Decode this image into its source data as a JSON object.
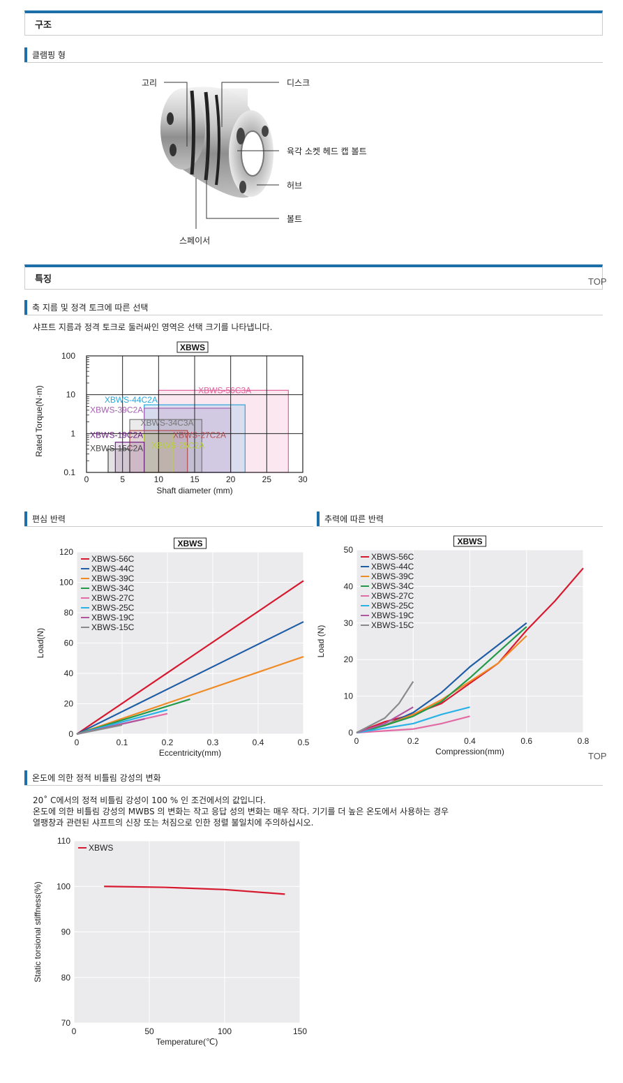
{
  "sections": {
    "structure": "구조",
    "features": "특징"
  },
  "subs": {
    "clamping": "클램핑 형",
    "selection": "축 지름 및 정격 토크에 따른 선택",
    "eccentric": "편심 반력",
    "compress": "추력에 따른 반력",
    "temperature": "온도에 의한 정적 비틀림 강성의 변화"
  },
  "top_link": "TOP",
  "diagram_labels": {
    "ring": "고리",
    "disc": "디스크",
    "hex_bolt": "육각 소켓 헤드 캡 볼트",
    "hub": "허브",
    "bolt": "볼트",
    "spacer": "스페이서"
  },
  "selection_text": "샤프트 지름과 정격 토크로 둘러싸인 영역은 선택 크기를 나타냅니다.",
  "temperature_text": [
    "20˚ C에서의 정적 비틀림 강성이 100 % 인 조건에서의 값입니다.",
    "온도에 의한 비틀림 강성의 MWBS 의 변화는 작고 응답 성의 변화는 매우 작다. 기기를 더 높은 온도에서 사용하는 경우",
    "열팽창과 관련된 샤프트의 신장 또는 처짐으로 인한 정렬 불일치에 주의하십시오."
  ],
  "chart_data": [
    {
      "type": "area",
      "title": "XBWS",
      "xlabel": "Shaft diameter (mm)",
      "ylabel": "Rated Torque(N·m)",
      "xlim": [
        0,
        30
      ],
      "ylim": [
        0.1,
        100
      ],
      "yscale": "log",
      "x_ticks": [
        "0",
        "5",
        "10",
        "15",
        "20",
        "25",
        "30"
      ],
      "y_ticks": [
        "0.1",
        "1",
        "10",
        "100"
      ],
      "regions": [
        {
          "name": "XBWS-56C3A",
          "d_min": 10,
          "d_max": 28,
          "torque": 13,
          "color": "#e0609a"
        },
        {
          "name": "XBWS-44C2A",
          "d_min": 8,
          "d_max": 22,
          "torque": 5.5,
          "color": "#2aa6dc"
        },
        {
          "name": "XBWS-39C2A",
          "d_min": 8,
          "d_max": 20,
          "torque": 4.5,
          "color": "#a560b0"
        },
        {
          "name": "XBWS-34C3A",
          "d_min": 6,
          "d_max": 16,
          "torque": 2.3,
          "color": "#777777"
        },
        {
          "name": "XBWS-27C2A",
          "d_min": 6,
          "d_max": 14,
          "torque": 1.2,
          "color": "#b05050"
        },
        {
          "name": "XBWS-25C2A",
          "d_min": 8,
          "d_max": 12,
          "torque": 1.0,
          "color": "#b8d040"
        },
        {
          "name": "XBWS-19C2A",
          "d_min": 4,
          "d_max": 8,
          "torque": 0.6,
          "color": "#6a2080"
        },
        {
          "name": "XBWS-15C2A",
          "d_min": 3,
          "d_max": 6,
          "torque": 0.4,
          "color": "#444444"
        }
      ]
    },
    {
      "type": "line",
      "title": "XBWS",
      "xlabel": "Eccentricity(mm)",
      "ylabel": "Load(N)",
      "xlim": [
        0,
        0.5
      ],
      "ylim": [
        0,
        120
      ],
      "x_ticks": [
        "0",
        "0.1",
        "0.2",
        "0.3",
        "0.4",
        "0.5"
      ],
      "y_ticks": [
        "0",
        "20",
        "40",
        "60",
        "80",
        "100",
        "120"
      ],
      "grid": true,
      "legend": "top-left",
      "series": [
        {
          "name": "XBWS-56C",
          "color": "#d7192f",
          "x": [
            0,
            0.5
          ],
          "y": [
            0,
            101
          ]
        },
        {
          "name": "XBWS-44C",
          "color": "#1f5da5",
          "x": [
            0,
            0.5
          ],
          "y": [
            0,
            74
          ]
        },
        {
          "name": "XBWS-39C",
          "color": "#f08a24",
          "x": [
            0,
            0.5
          ],
          "y": [
            0,
            51
          ]
        },
        {
          "name": "XBWS-34C",
          "color": "#229a4a",
          "x": [
            0,
            0.25
          ],
          "y": [
            0,
            23
          ]
        },
        {
          "name": "XBWS-27C",
          "color": "#e26ba5",
          "x": [
            0,
            0.2
          ],
          "y": [
            0,
            13.5
          ]
        },
        {
          "name": "XBWS-25C",
          "color": "#2ab2e6",
          "x": [
            0,
            0.2
          ],
          "y": [
            0,
            16
          ]
        },
        {
          "name": "XBWS-19C",
          "color": "#b0559e",
          "x": [
            0,
            0.15
          ],
          "y": [
            0,
            10
          ]
        },
        {
          "name": "XBWS-15C",
          "color": "#8a8a8a",
          "x": [
            0,
            0.1
          ],
          "y": [
            0,
            6
          ]
        }
      ]
    },
    {
      "type": "line",
      "title": "XBWS",
      "xlabel": "Compression(mm)",
      "ylabel": "Load (N)",
      "xlim": [
        0,
        0.8
      ],
      "ylim": [
        0,
        50
      ],
      "x_ticks": [
        "0",
        "0.2",
        "0.4",
        "0.6",
        "0.8"
      ],
      "y_ticks": [
        "0",
        "10",
        "20",
        "30",
        "40",
        "50"
      ],
      "grid": true,
      "legend": "top-left",
      "series": [
        {
          "name": "XBWS-56C",
          "color": "#d7192f",
          "x": [
            0,
            0.1,
            0.2,
            0.3,
            0.4,
            0.5,
            0.6,
            0.7,
            0.8
          ],
          "y": [
            0,
            3,
            5,
            8,
            13.5,
            19,
            28,
            36,
            45
          ]
        },
        {
          "name": "XBWS-44C",
          "color": "#1f5da5",
          "x": [
            0,
            0.1,
            0.2,
            0.3,
            0.4,
            0.5,
            0.6
          ],
          "y": [
            0,
            2,
            5.5,
            11,
            18,
            24,
            30
          ]
        },
        {
          "name": "XBWS-39C",
          "color": "#f08a24",
          "x": [
            0,
            0.1,
            0.2,
            0.3,
            0.4,
            0.5,
            0.6
          ],
          "y": [
            0,
            2,
            5,
            9,
            14,
            19,
            26.5
          ]
        },
        {
          "name": "XBWS-34C",
          "color": "#229a4a",
          "x": [
            0,
            0.1,
            0.2,
            0.3,
            0.4,
            0.5,
            0.6
          ],
          "y": [
            0,
            2,
            4.5,
            8.5,
            15,
            22,
            29
          ]
        },
        {
          "name": "XBWS-27C",
          "color": "#e26ba5",
          "x": [
            0,
            0.2,
            0.3,
            0.4
          ],
          "y": [
            0,
            1,
            2.5,
            4.5
          ]
        },
        {
          "name": "XBWS-25C",
          "color": "#2ab2e6",
          "x": [
            0,
            0.2,
            0.3,
            0.4
          ],
          "y": [
            0,
            2.5,
            5,
            7
          ]
        },
        {
          "name": "XBWS-19C",
          "color": "#b0559e",
          "x": [
            0,
            0.1,
            0.2
          ],
          "y": [
            0,
            2.5,
            7
          ]
        },
        {
          "name": "XBWS-15C",
          "color": "#8a8a8a",
          "x": [
            0,
            0.1,
            0.15,
            0.2
          ],
          "y": [
            0,
            4,
            8,
            14
          ]
        }
      ]
    },
    {
      "type": "line",
      "xlabel": "Temperature(℃)",
      "ylabel": "Static torsional stiffness(%)",
      "xlim": [
        0,
        150
      ],
      "ylim": [
        70,
        110
      ],
      "x_ticks": [
        "0",
        "50",
        "100",
        "150"
      ],
      "y_ticks": [
        "70",
        "80",
        "90",
        "100",
        "110"
      ],
      "grid": true,
      "legend": "top-left",
      "series": [
        {
          "name": "XBWS",
          "color": "#d7192f",
          "x": [
            20,
            60,
            100,
            140
          ],
          "y": [
            100,
            99.8,
            99.3,
            98.3
          ]
        }
      ]
    }
  ]
}
